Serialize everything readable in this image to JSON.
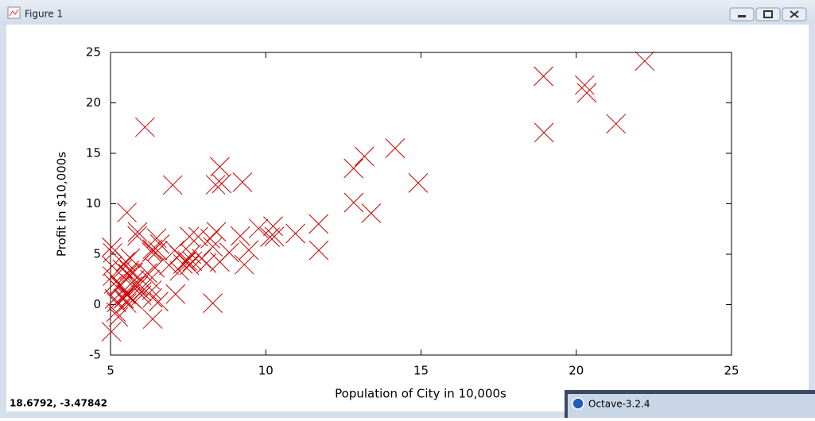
{
  "window_title": "Figure 1",
  "chart_data": {
    "type": "scatter",
    "xlabel": "Population of City in 10,000s",
    "ylabel": "Profit in $10,000s",
    "x": [
      6.1101,
      5.5277,
      8.5186,
      7.0032,
      5.8598,
      8.3829,
      7.4764,
      8.5781,
      6.4862,
      5.0546,
      5.7107,
      14.164,
      5.734,
      8.4084,
      5.6407,
      5.3794,
      6.3654,
      5.1301,
      6.4296,
      7.0708,
      6.1891,
      20.27,
      5.4901,
      6.3261,
      5.5649,
      18.945,
      12.828,
      10.957,
      13.176,
      22.203,
      5.2524,
      6.5894,
      9.2482,
      5.8918,
      8.2111,
      7.9334,
      8.0959,
      5.6063,
      12.836,
      6.3534,
      5.4069,
      6.8825,
      11.708,
      5.7737,
      7.8247,
      7.0931,
      5.0702,
      5.8014,
      11.7,
      5.5416,
      7.5402,
      5.3077,
      7.4239,
      7.6031,
      6.3328,
      6.3589,
      6.2742,
      5.6397,
      9.3102,
      9.4536,
      8.8254,
      5.1793,
      21.279,
      14.908,
      18.959,
      7.2182,
      8.2951,
      10.236,
      5.4994,
      20.341,
      10.136,
      7.3345,
      6.0062,
      7.2259,
      5.0269,
      6.5479,
      7.5386,
      5.0365,
      10.274,
      5.1077,
      5.7292,
      5.1884,
      6.3557,
      9.7687,
      6.5159,
      8.5172,
      9.1802,
      6.002,
      5.5204,
      5.0594,
      5.7077,
      7.6366,
      5.8707,
      5.3054,
      8.2934,
      13.394,
      5.4369
    ],
    "values": [
      17.592,
      9.1302,
      13.662,
      11.854,
      6.8233,
      11.886,
      4.3483,
      12,
      6.5987,
      3.8166,
      3.2522,
      15.505,
      3.1551,
      7.2258,
      0.71618,
      3.5129,
      5.3048,
      0.56077,
      3.6518,
      5.3893,
      3.1386,
      21.767,
      4.263,
      5.1875,
      3.0825,
      22.638,
      13.501,
      7.0467,
      14.692,
      24.147,
      -1.22,
      5.9966,
      12.134,
      1.8495,
      6.5426,
      4.5623,
      4.1164,
      3.3928,
      10.117,
      5.4974,
      0.55657,
      3.9115,
      5.3854,
      2.4406,
      6.7318,
      1.0463,
      5.1337,
      1.844,
      8.0043,
      1.0179,
      6.7504,
      1.8396,
      4.2885,
      4.9981,
      1.4233,
      -1.4211,
      2.4756,
      4.6042,
      3.9624,
      5.4141,
      5.1694,
      -0.74279,
      17.929,
      12.054,
      17.054,
      4.8852,
      5.7442,
      7.7754,
      1.0173,
      20.992,
      6.6799,
      4.0259,
      1.2784,
      3.3411,
      -2.6807,
      0.29678,
      3.8845,
      5.7014,
      6.7526,
      2.0576,
      0.47953,
      0.20421,
      0.67861,
      7.5435,
      5.3436,
      4.2415,
      6.7981,
      0.92695,
      0.152,
      2.8214,
      1.8451,
      4.2959,
      7.2029,
      1.9869,
      0.14454,
      9.0551,
      0.61705
    ],
    "color": "#cc0000",
    "xlim": [
      5,
      25
    ],
    "xticks": [
      5,
      10,
      15,
      20,
      25
    ],
    "ylim": [
      -5,
      25
    ],
    "yticks": [
      -5,
      0,
      5,
      10,
      15,
      20,
      25
    ]
  },
  "status_text": "18.6792, -3.47842",
  "taskbar_window": "Octave-3.2.4"
}
